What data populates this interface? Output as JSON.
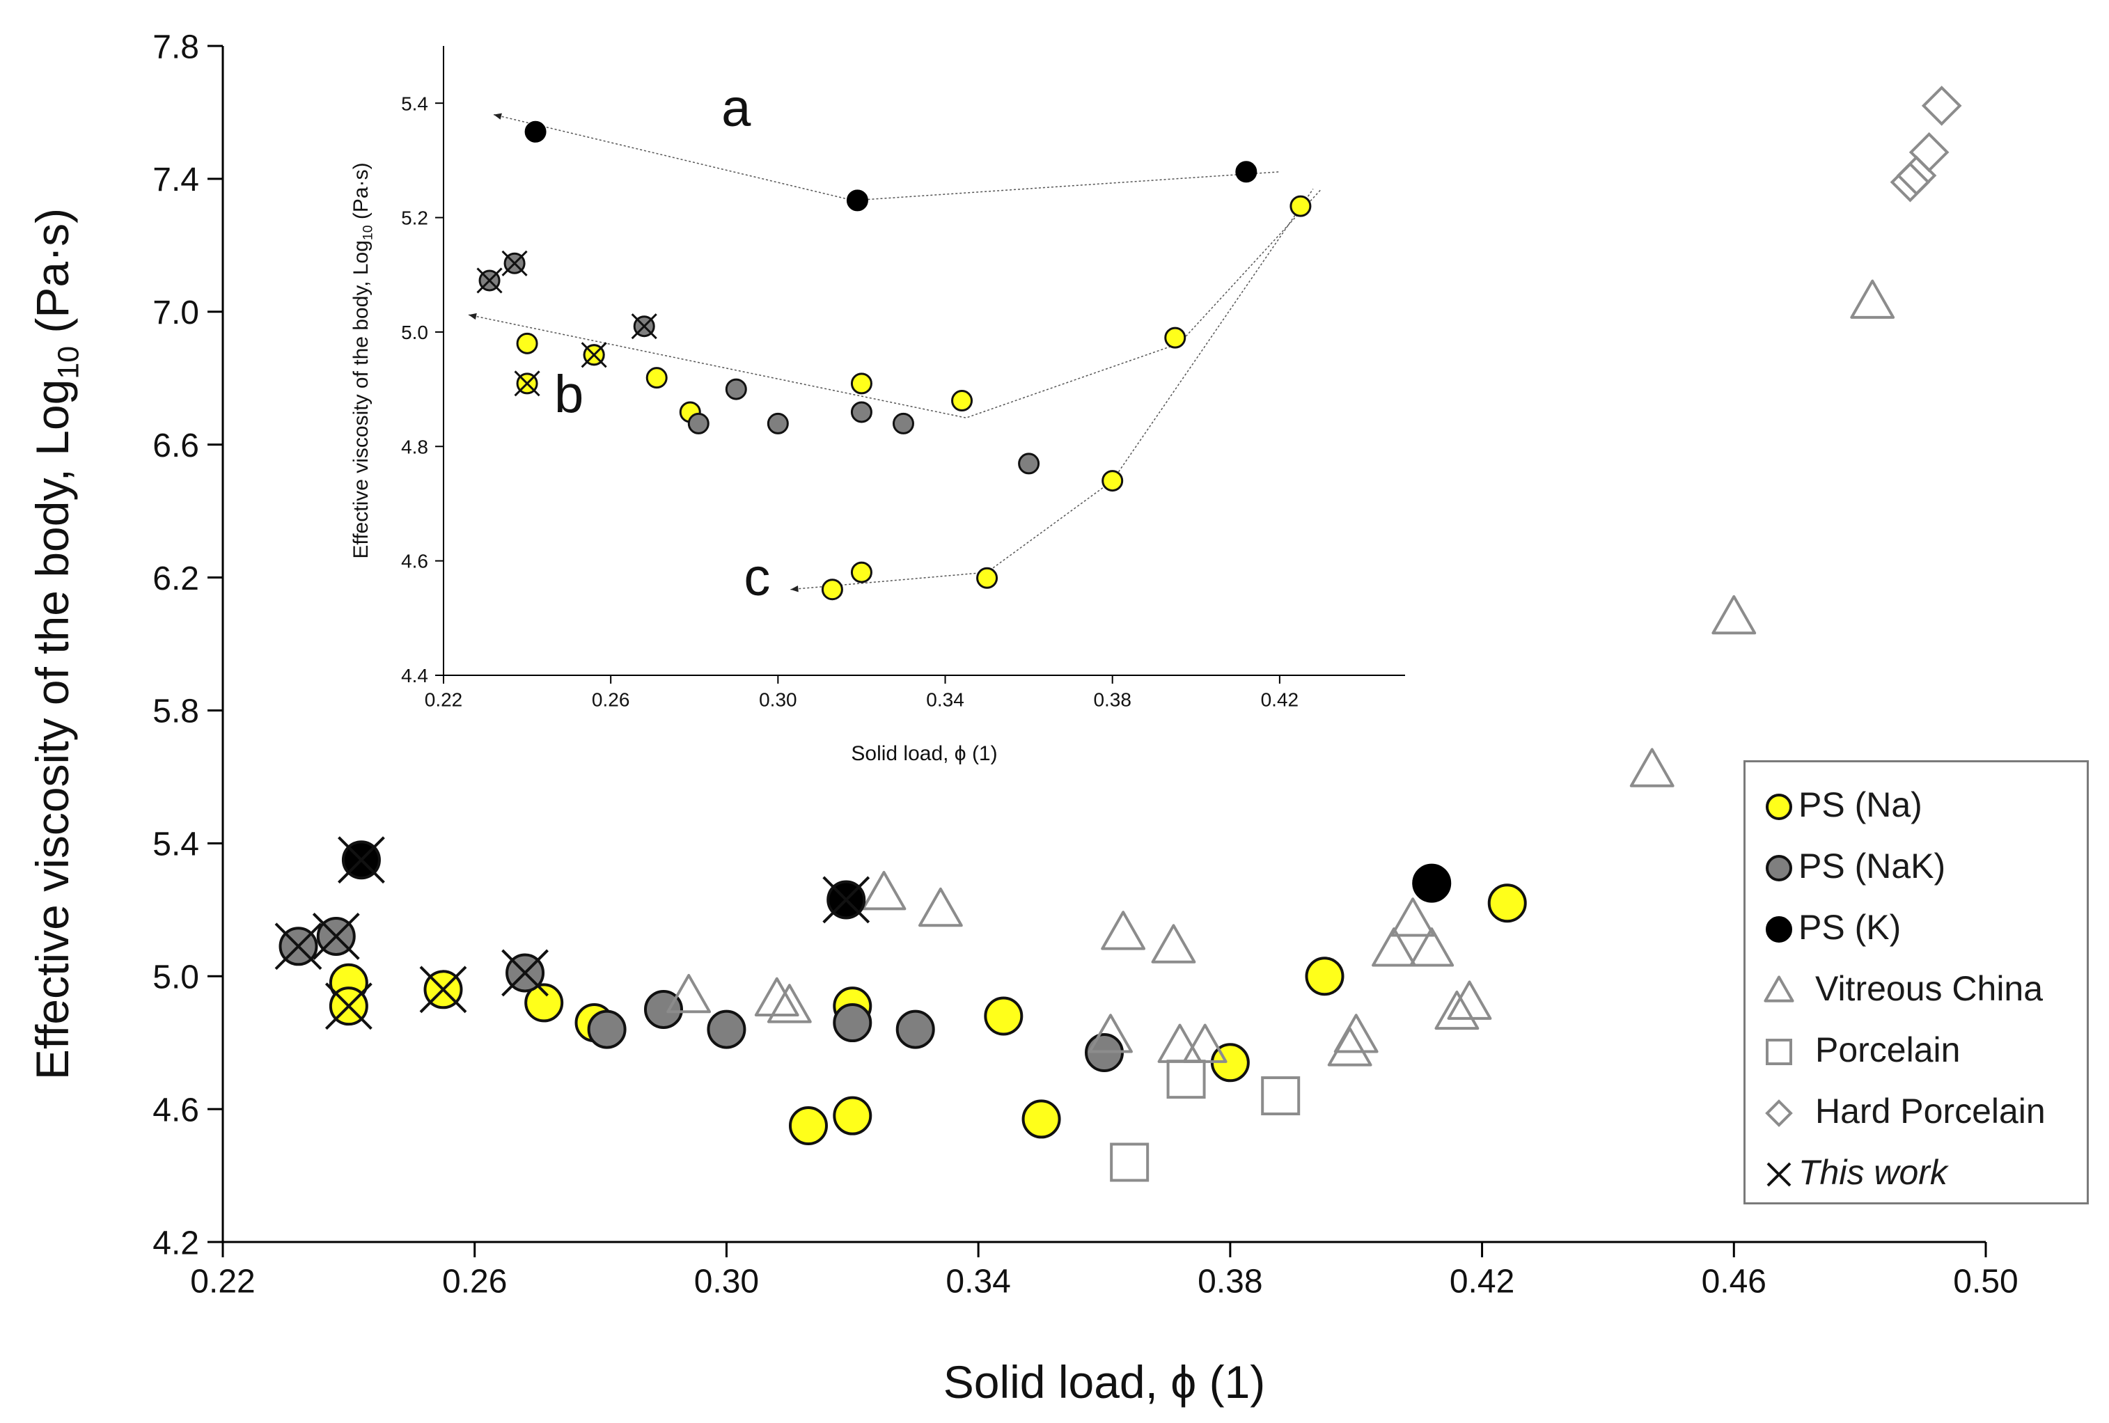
{
  "chart_data": [
    {
      "type": "scatter",
      "title": "",
      "xlabel": "Solid load, ϕ (1)",
      "ylabel_main": "Effective viscosity of the body, Log",
      "ylabel_sub": "10",
      "ylabel_units": " (Pa·s)",
      "xlim": [
        0.22,
        0.5
      ],
      "ylim": [
        4.2,
        7.8
      ],
      "x_ticks": [
        "0.22",
        "0.26",
        "0.30",
        "0.34",
        "0.38",
        "0.42",
        "0.46",
        "0.50"
      ],
      "y_ticks": [
        "4.2",
        "4.6",
        "5.0",
        "5.4",
        "5.8",
        "6.2",
        "6.6",
        "7.0",
        "7.4",
        "7.8"
      ],
      "legend_position": "right",
      "series": [
        {
          "name": "PS (Na)",
          "marker": "circle",
          "fill": "#ffff1a",
          "stroke": "#111111",
          "points": [
            [
              0.24,
              4.98
            ],
            [
              0.271,
              4.92
            ],
            [
              0.279,
              4.86
            ],
            [
              0.313,
              4.55
            ],
            [
              0.32,
              4.91
            ],
            [
              0.32,
              4.58
            ],
            [
              0.344,
              4.88
            ],
            [
              0.35,
              4.57
            ],
            [
              0.38,
              4.74
            ],
            [
              0.395,
              5.0
            ],
            [
              0.424,
              5.22
            ]
          ]
        },
        {
          "name": "PS (NaK)",
          "marker": "circle",
          "fill": "#7f7f7f",
          "stroke": "#111111",
          "points": [
            [
              0.281,
              4.84
            ],
            [
              0.29,
              4.9
            ],
            [
              0.3,
              4.84
            ],
            [
              0.32,
              4.86
            ],
            [
              0.33,
              4.84
            ],
            [
              0.36,
              4.77
            ]
          ]
        },
        {
          "name": "PS (K)",
          "marker": "circle",
          "fill": "#000000",
          "stroke": "#000000",
          "points": [
            [
              0.412,
              5.28
            ]
          ]
        },
        {
          "name": "Vitreous China",
          "marker": "triangle",
          "fill": "none",
          "stroke": "#8c8c8c",
          "points": [
            [
              0.294,
              4.94
            ],
            [
              0.308,
              4.93
            ],
            [
              0.31,
              4.91
            ],
            [
              0.325,
              5.25
            ],
            [
              0.334,
              5.2
            ],
            [
              0.361,
              4.82
            ],
            [
              0.363,
              5.13
            ],
            [
              0.371,
              5.09
            ],
            [
              0.372,
              4.79
            ],
            [
              0.376,
              4.79
            ],
            [
              0.399,
              4.78
            ],
            [
              0.4,
              4.82
            ],
            [
              0.406,
              5.08
            ],
            [
              0.409,
              5.17
            ],
            [
              0.412,
              5.08
            ],
            [
              0.416,
              4.89
            ],
            [
              0.418,
              4.92
            ],
            [
              0.447,
              5.62
            ],
            [
              0.46,
              6.08
            ],
            [
              0.482,
              7.03
            ]
          ]
        },
        {
          "name": "Porcelain",
          "marker": "square",
          "fill": "none",
          "stroke": "#8c8c8c",
          "points": [
            [
              0.364,
              4.44
            ],
            [
              0.373,
              4.69
            ],
            [
              0.388,
              4.64
            ]
          ]
        },
        {
          "name": "Hard Porcelain",
          "marker": "diamond",
          "fill": "none",
          "stroke": "#8c8c8c",
          "points": [
            [
              0.488,
              7.39
            ],
            [
              0.489,
              7.41
            ],
            [
              0.491,
              7.48
            ],
            [
              0.493,
              7.62
            ]
          ]
        },
        {
          "name": "This work",
          "marker": "x-overlay",
          "stroke": "#111111",
          "points": [
            {
              "x": 0.232,
              "y": 5.09,
              "fill": "#7f7f7f"
            },
            {
              "x": 0.238,
              "y": 5.12,
              "fill": "#7f7f7f"
            },
            {
              "x": 0.24,
              "y": 4.91,
              "fill": "#ffff1a"
            },
            {
              "x": 0.242,
              "y": 5.35,
              "fill": "#000000"
            },
            {
              "x": 0.255,
              "y": 4.96,
              "fill": "#ffff1a"
            },
            {
              "x": 0.268,
              "y": 5.01,
              "fill": "#7f7f7f"
            },
            {
              "x": 0.319,
              "y": 5.23,
              "fill": "#000000"
            }
          ]
        }
      ]
    },
    {
      "type": "scatter",
      "title": "",
      "xlabel": "Solid load, ϕ (1)",
      "ylabel_main": "Effective viscosity of the body, Log",
      "ylabel_sub": "10",
      "ylabel_units": " (Pa·s)",
      "xlim": [
        0.22,
        0.45
      ],
      "ylim": [
        4.4,
        5.5
      ],
      "x_ticks": [
        "0.22",
        "0.26",
        "0.30",
        "0.34",
        "0.38",
        "0.42"
      ],
      "y_ticks": [
        "4.4",
        "4.6",
        "4.8",
        "5.0",
        "5.2",
        "5.4"
      ],
      "annotations": [
        {
          "text": "a",
          "x": 0.29,
          "y": 5.36
        },
        {
          "text": "b",
          "x": 0.25,
          "y": 4.86
        },
        {
          "text": "c",
          "x": 0.295,
          "y": 4.54
        }
      ],
      "trend_lines": [
        {
          "label": "a",
          "points": [
            [
              0.232,
              5.38
            ],
            [
              0.318,
              5.23
            ],
            [
              0.42,
              5.28
            ]
          ]
        },
        {
          "label": "b",
          "points": [
            [
              0.226,
              5.03
            ],
            [
              0.345,
              4.85
            ],
            [
              0.396,
              4.98
            ],
            [
              0.43,
              5.25
            ]
          ]
        },
        {
          "label": "c",
          "points": [
            [
              0.303,
              4.55
            ],
            [
              0.35,
              4.58
            ],
            [
              0.38,
              4.74
            ],
            [
              0.428,
              5.25
            ]
          ]
        }
      ],
      "series": [
        {
          "name": "PS (Na)",
          "marker": "circle",
          "fill": "#ffff1a",
          "stroke": "#111111",
          "points": [
            [
              0.24,
              4.98
            ],
            [
              0.256,
              4.96
            ],
            [
              0.271,
              4.92
            ],
            [
              0.279,
              4.86
            ],
            [
              0.32,
              4.91
            ],
            [
              0.344,
              4.88
            ],
            [
              0.38,
              4.74
            ],
            [
              0.395,
              4.99
            ],
            [
              0.425,
              5.22
            ],
            [
              0.313,
              4.55
            ],
            [
              0.32,
              4.58
            ],
            [
              0.35,
              4.57
            ]
          ]
        },
        {
          "name": "PS (NaK)",
          "marker": "circle",
          "fill": "#7f7f7f",
          "stroke": "#111111",
          "points": [
            [
              0.281,
              4.84
            ],
            [
              0.29,
              4.9
            ],
            [
              0.3,
              4.84
            ],
            [
              0.32,
              4.86
            ],
            [
              0.33,
              4.84
            ],
            [
              0.36,
              4.77
            ]
          ]
        },
        {
          "name": "PS (K)",
          "marker": "circle",
          "fill": "#000000",
          "stroke": "#000000",
          "points": [
            [
              0.242,
              5.35
            ],
            [
              0.319,
              5.23
            ],
            [
              0.412,
              5.28
            ]
          ]
        },
        {
          "name": "This work",
          "marker": "x-overlay",
          "stroke": "#111111",
          "points": [
            {
              "x": 0.231,
              "y": 5.09,
              "fill": "#7f7f7f"
            },
            {
              "x": 0.237,
              "y": 5.12,
              "fill": "#7f7f7f"
            },
            {
              "x": 0.24,
              "y": 4.91,
              "fill": "#ffff1a"
            },
            {
              "x": 0.256,
              "y": 4.96,
              "fill": "#ffff1a"
            },
            {
              "x": 0.268,
              "y": 5.01,
              "fill": "#7f7f7f"
            }
          ]
        }
      ]
    }
  ],
  "legend": {
    "items": [
      {
        "label": "PS (Na)",
        "symbol": "circle",
        "fill": "#ffff1a",
        "stroke": "#111111",
        "italic": false
      },
      {
        "label": "PS (NaK)",
        "symbol": "circle",
        "fill": "#7f7f7f",
        "stroke": "#111111",
        "italic": false
      },
      {
        "label": "PS (K)",
        "symbol": "circle",
        "fill": "#000000",
        "stroke": "#000000",
        "italic": false
      },
      {
        "label": "Vitreous China",
        "symbol": "triangle",
        "fill": "none",
        "stroke": "#8c8c8c",
        "italic": false
      },
      {
        "label": "Porcelain",
        "symbol": "square",
        "fill": "none",
        "stroke": "#8c8c8c",
        "italic": false
      },
      {
        "label": "Hard Porcelain",
        "symbol": "diamond",
        "fill": "none",
        "stroke": "#8c8c8c",
        "italic": false
      },
      {
        "label": "This work",
        "symbol": "x",
        "fill": "none",
        "stroke": "#111111",
        "italic": true
      }
    ]
  }
}
